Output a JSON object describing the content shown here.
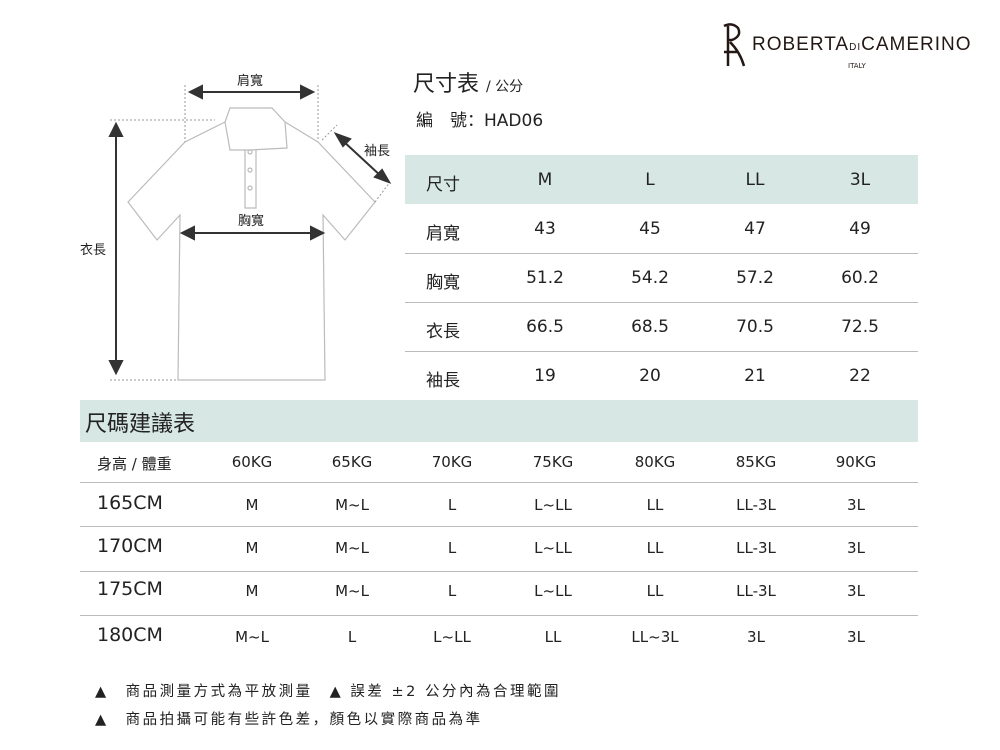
{
  "brand": {
    "name_part1": "ROBERTA",
    "name_di": "DI",
    "name_part2": "CAMERINO",
    "country": "ITALY"
  },
  "diagram": {
    "shoulder": "肩寬",
    "sleeve": "袖長",
    "chest": "胸寬",
    "length": "衣長"
  },
  "size_table": {
    "title": "尺寸表",
    "unit": "/ 公分",
    "code_label": "編　號：",
    "code": "HAD06",
    "header": [
      "尺寸",
      "M",
      "L",
      "LL",
      "3L"
    ],
    "rows": [
      [
        "肩寬",
        "43",
        "45",
        "47",
        "49"
      ],
      [
        "胸寬",
        "51.2",
        "54.2",
        "57.2",
        "60.2"
      ],
      [
        "衣長",
        "66.5",
        "68.5",
        "70.5",
        "72.5"
      ],
      [
        "袖長",
        "19",
        "20",
        "21",
        "22"
      ]
    ]
  },
  "recommend_table": {
    "title": "尺碼建議表",
    "header": [
      "身高 / 體重",
      "60KG",
      "65KG",
      "70KG",
      "75KG",
      "80KG",
      "85KG",
      "90KG"
    ],
    "rows": [
      [
        "165CM",
        "M",
        "M~L",
        "L",
        "L~LL",
        "LL",
        "LL-3L",
        "3L"
      ],
      [
        "170CM",
        "M",
        "M~L",
        "L",
        "L~LL",
        "LL",
        "LL-3L",
        "3L"
      ],
      [
        "175CM",
        "M",
        "M~L",
        "L",
        "L~LL",
        "LL",
        "LL-3L",
        "3L"
      ],
      [
        "180CM",
        "M~L",
        "L",
        "L~LL",
        "LL",
        "LL~3L",
        "3L",
        "3L"
      ]
    ]
  },
  "notes": [
    "▲　商品測量方式為平放測量　▲ 誤差 ±2 公分內為合理範圍",
    "▲　商品拍攝可能有些許色差，顏色以實際商品為準"
  ],
  "colors": {
    "header_bg": "#d6e7e4"
  }
}
